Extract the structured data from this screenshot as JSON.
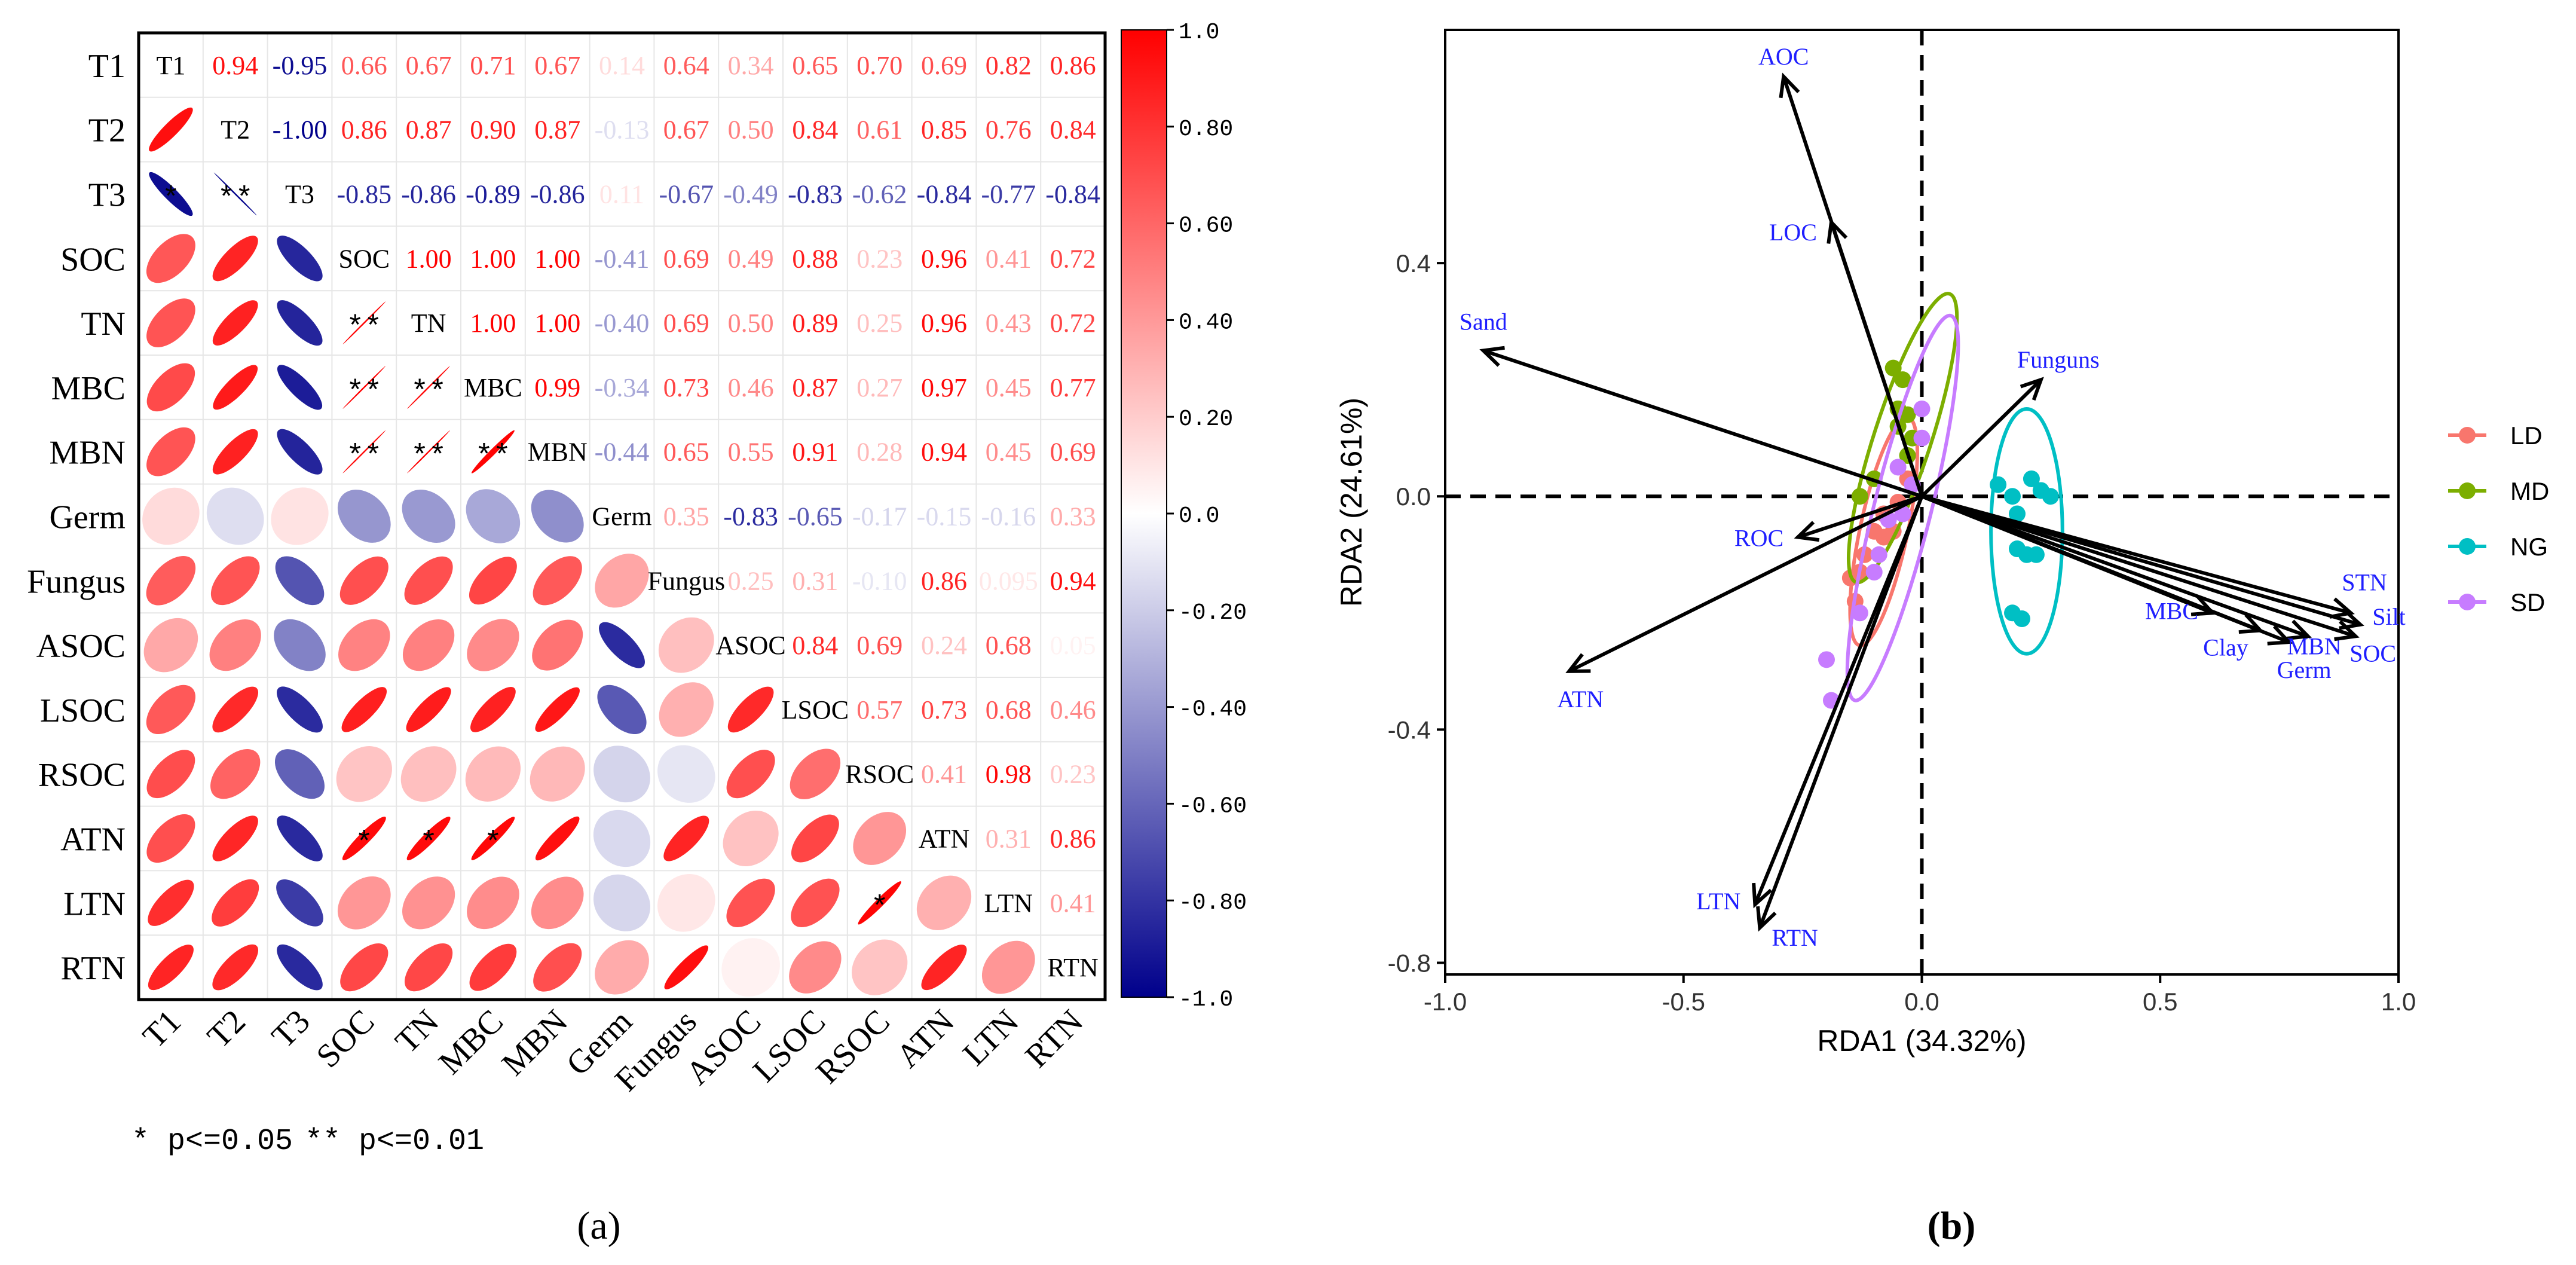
{
  "panels": {
    "a_label": "(a)",
    "b_label": "(b)"
  },
  "legend_note": {
    "one_star": "* p<=0.05",
    "two_star": "** p<=0.01"
  },
  "colors": {
    "positive": "#ff0000",
    "negative": "#00008b",
    "neutral": "#ffffff",
    "LD": "#f8766d",
    "MD": "#7cae00",
    "NG": "#00bfc4",
    "SD": "#c77cff",
    "arrow_label": "#1f1fff"
  },
  "chart_data": [
    {
      "type": "heatmap",
      "title": "",
      "variables": [
        "T1",
        "T2",
        "T3",
        "SOC",
        "TN",
        "MBC",
        "MBN",
        "Germ",
        "Fungus",
        "ASOC",
        "LSOC",
        "RSOC",
        "ATN",
        "LTN",
        "RTN"
      ],
      "upper_triangle_labels": [
        [
          "T1",
          "0.94",
          "-0.95",
          "0.66",
          "0.67",
          "0.71",
          "0.67",
          "0.14",
          "0.64",
          "0.34",
          "0.65",
          "0.70",
          "0.69",
          "0.82",
          "0.86"
        ],
        [
          "",
          "T2",
          "-1.00",
          "0.86",
          "0.87",
          "0.90",
          "0.87",
          "-0.13",
          "0.67",
          "0.50",
          "0.84",
          "0.61",
          "0.85",
          "0.76",
          "0.84"
        ],
        [
          "",
          "",
          "T3",
          "-0.85",
          "-0.86",
          "-0.89",
          "-0.86",
          "0.11",
          "-0.67",
          "-0.49",
          "-0.83",
          "-0.62",
          "-0.84",
          "-0.77",
          "-0.84"
        ],
        [
          "",
          "",
          "",
          "SOC",
          "1.00",
          "1.00",
          "1.00",
          "-0.41",
          "0.69",
          "0.49",
          "0.88",
          "0.23",
          "0.96",
          "0.41",
          "0.72"
        ],
        [
          "",
          "",
          "",
          "",
          "TN",
          "1.00",
          "1.00",
          "-0.40",
          "0.69",
          "0.50",
          "0.89",
          "0.25",
          "0.96",
          "0.43",
          "0.72"
        ],
        [
          "",
          "",
          "",
          "",
          "",
          "MBC",
          "0.99",
          "-0.34",
          "0.73",
          "0.46",
          "0.87",
          "0.27",
          "0.97",
          "0.45",
          "0.77"
        ],
        [
          "",
          "",
          "",
          "",
          "",
          "",
          "MBN",
          "-0.44",
          "0.65",
          "0.55",
          "0.91",
          "0.28",
          "0.94",
          "0.45",
          "0.69"
        ],
        [
          "",
          "",
          "",
          "",
          "",
          "",
          "",
          "Germ",
          "0.35",
          "-0.83",
          "-0.65",
          "-0.17",
          "-0.15",
          "-0.16",
          "0.33"
        ],
        [
          "",
          "",
          "",
          "",
          "",
          "",
          "",
          "",
          "Fungus",
          "0.25",
          "0.31",
          "-0.10",
          "0.86",
          "0.095",
          "0.94"
        ],
        [
          "",
          "",
          "",
          "",
          "",
          "",
          "",
          "",
          "",
          "ASOC",
          "0.84",
          "0.69",
          "0.24",
          "0.68",
          "0.05"
        ],
        [
          "",
          "",
          "",
          "",
          "",
          "",
          "",
          "",
          "",
          "",
          "LSOC",
          "0.57",
          "0.73",
          "0.68",
          "0.46"
        ],
        [
          "",
          "",
          "",
          "",
          "",
          "",
          "",
          "",
          "",
          "",
          "",
          "RSOC",
          "0.41",
          "0.98",
          "0.23"
        ],
        [
          "",
          "",
          "",
          "",
          "",
          "",
          "",
          "",
          "",
          "",
          "",
          "",
          "ATN",
          "0.31",
          "0.86"
        ],
        [
          "",
          "",
          "",
          "",
          "",
          "",
          "",
          "",
          "",
          "",
          "",
          "",
          "",
          "LTN",
          "0.41"
        ],
        [
          "",
          "",
          "",
          "",
          "",
          "",
          "",
          "",
          "",
          "",
          "",
          "",
          "",
          "",
          "RTN"
        ]
      ],
      "significance": [
        {
          "row": "T3",
          "col": "T1",
          "mark": "*"
        },
        {
          "row": "T3",
          "col": "T2",
          "mark": "**"
        },
        {
          "row": "TN",
          "col": "SOC",
          "mark": "**"
        },
        {
          "row": "MBC",
          "col": "SOC",
          "mark": "**"
        },
        {
          "row": "MBC",
          "col": "TN",
          "mark": "**"
        },
        {
          "row": "MBN",
          "col": "SOC",
          "mark": "**"
        },
        {
          "row": "MBN",
          "col": "TN",
          "mark": "**"
        },
        {
          "row": "MBN",
          "col": "MBC",
          "mark": "**"
        },
        {
          "row": "ATN",
          "col": "SOC",
          "mark": "*"
        },
        {
          "row": "ATN",
          "col": "TN",
          "mark": "*"
        },
        {
          "row": "ATN",
          "col": "MBC",
          "mark": "*"
        },
        {
          "row": "LTN",
          "col": "RSOC",
          "mark": "*"
        }
      ],
      "colorbar": {
        "min": -1.0,
        "max": 1.0,
        "ticks": [
          "1.0",
          "0.80",
          "0.60",
          "0.40",
          "0.20",
          "0.0",
          "-0.20",
          "-0.40",
          "-0.60",
          "-0.80",
          "-1.0"
        ]
      }
    },
    {
      "type": "scatter",
      "subtype": "rda_biplot",
      "xlabel": "RDA1 (34.32%)",
      "ylabel": "RDA2 (24.61%)",
      "xlim": [
        -1.0,
        1.0
      ],
      "ylim": [
        -0.82,
        0.8
      ],
      "xticks": [
        "-1.0",
        "-0.5",
        "0.0",
        "0.5",
        "1.0"
      ],
      "yticks": [
        "0.4",
        "0.0",
        "-0.4",
        "-0.8"
      ],
      "legend": [
        "LD",
        "MD",
        "NG",
        "SD"
      ],
      "arrows": [
        {
          "label": "AOC",
          "x": -0.29,
          "y": 0.72
        },
        {
          "label": "LOC",
          "x": -0.19,
          "y": 0.47
        },
        {
          "label": "Sand",
          "x": -0.92,
          "y": 0.25
        },
        {
          "label": "Funguns",
          "x": 0.25,
          "y": 0.2
        },
        {
          "label": "ROC",
          "x": -0.26,
          "y": -0.07
        },
        {
          "label": "ATN",
          "x": -0.74,
          "y": -0.3
        },
        {
          "label": "LTN",
          "x": -0.35,
          "y": -0.7
        },
        {
          "label": "RTN",
          "x": -0.34,
          "y": -0.74
        },
        {
          "label": "MBC",
          "x": 0.61,
          "y": -0.2
        },
        {
          "label": "Clay",
          "x": 0.71,
          "y": -0.23
        },
        {
          "label": "Germ",
          "x": 0.77,
          "y": -0.25
        },
        {
          "label": "MBN",
          "x": 0.81,
          "y": -0.24
        },
        {
          "label": "STN",
          "x": 0.9,
          "y": -0.2
        },
        {
          "label": "Silt",
          "x": 0.92,
          "y": -0.22
        },
        {
          "label": "SOC",
          "x": 0.91,
          "y": -0.24
        }
      ],
      "series": [
        {
          "name": "LD",
          "points": [
            [
              -0.03,
              0.03
            ],
            [
              -0.05,
              -0.01
            ],
            [
              -0.08,
              -0.03
            ],
            [
              -0.06,
              -0.06
            ],
            [
              -0.1,
              -0.06
            ],
            [
              -0.08,
              -0.07
            ],
            [
              -0.12,
              -0.1
            ],
            [
              -0.13,
              -0.13
            ],
            [
              -0.15,
              -0.14
            ],
            [
              -0.14,
              -0.18
            ]
          ],
          "ellipse": {
            "cx": -0.08,
            "cy": -0.06,
            "rx": 0.05,
            "ry": 0.2,
            "angle_deg": 12
          }
        },
        {
          "name": "MD",
          "points": [
            [
              -0.06,
              0.22
            ],
            [
              -0.04,
              0.2
            ],
            [
              -0.05,
              0.15
            ],
            [
              -0.03,
              0.14
            ],
            [
              -0.02,
              0.1
            ],
            [
              -0.05,
              0.12
            ],
            [
              -0.03,
              0.07
            ],
            [
              -0.1,
              0.03
            ],
            [
              -0.13,
              0.0
            ]
          ],
          "ellipse": {
            "cx": -0.04,
            "cy": 0.1,
            "rx": 0.06,
            "ry": 0.26,
            "angle_deg": 18
          }
        },
        {
          "name": "NG",
          "points": [
            [
              0.16,
              0.02
            ],
            [
              0.19,
              0.0
            ],
            [
              0.2,
              -0.03
            ],
            [
              0.23,
              0.03
            ],
            [
              0.25,
              0.01
            ],
            [
              0.27,
              0.0
            ],
            [
              0.2,
              -0.09
            ],
            [
              0.22,
              -0.1
            ],
            [
              0.24,
              -0.1
            ],
            [
              0.19,
              -0.2
            ],
            [
              0.21,
              -0.21
            ]
          ],
          "ellipse": {
            "cx": 0.22,
            "cy": -0.06,
            "rx": 0.075,
            "ry": 0.21,
            "angle_deg": 0
          }
        },
        {
          "name": "SD",
          "points": [
            [
              0.0,
              0.15
            ],
            [
              0.0,
              0.1
            ],
            [
              -0.02,
              0.02
            ],
            [
              -0.04,
              -0.03
            ],
            [
              -0.05,
              0.05
            ],
            [
              -0.07,
              -0.04
            ],
            [
              -0.09,
              -0.1
            ],
            [
              -0.1,
              -0.13
            ],
            [
              -0.13,
              -0.2
            ],
            [
              -0.2,
              -0.28
            ],
            [
              -0.19,
              -0.35
            ]
          ],
          "ellipse": {
            "cx": -0.04,
            "cy": -0.02,
            "rx": 0.06,
            "ry": 0.34,
            "angle_deg": 14
          }
        }
      ]
    }
  ]
}
